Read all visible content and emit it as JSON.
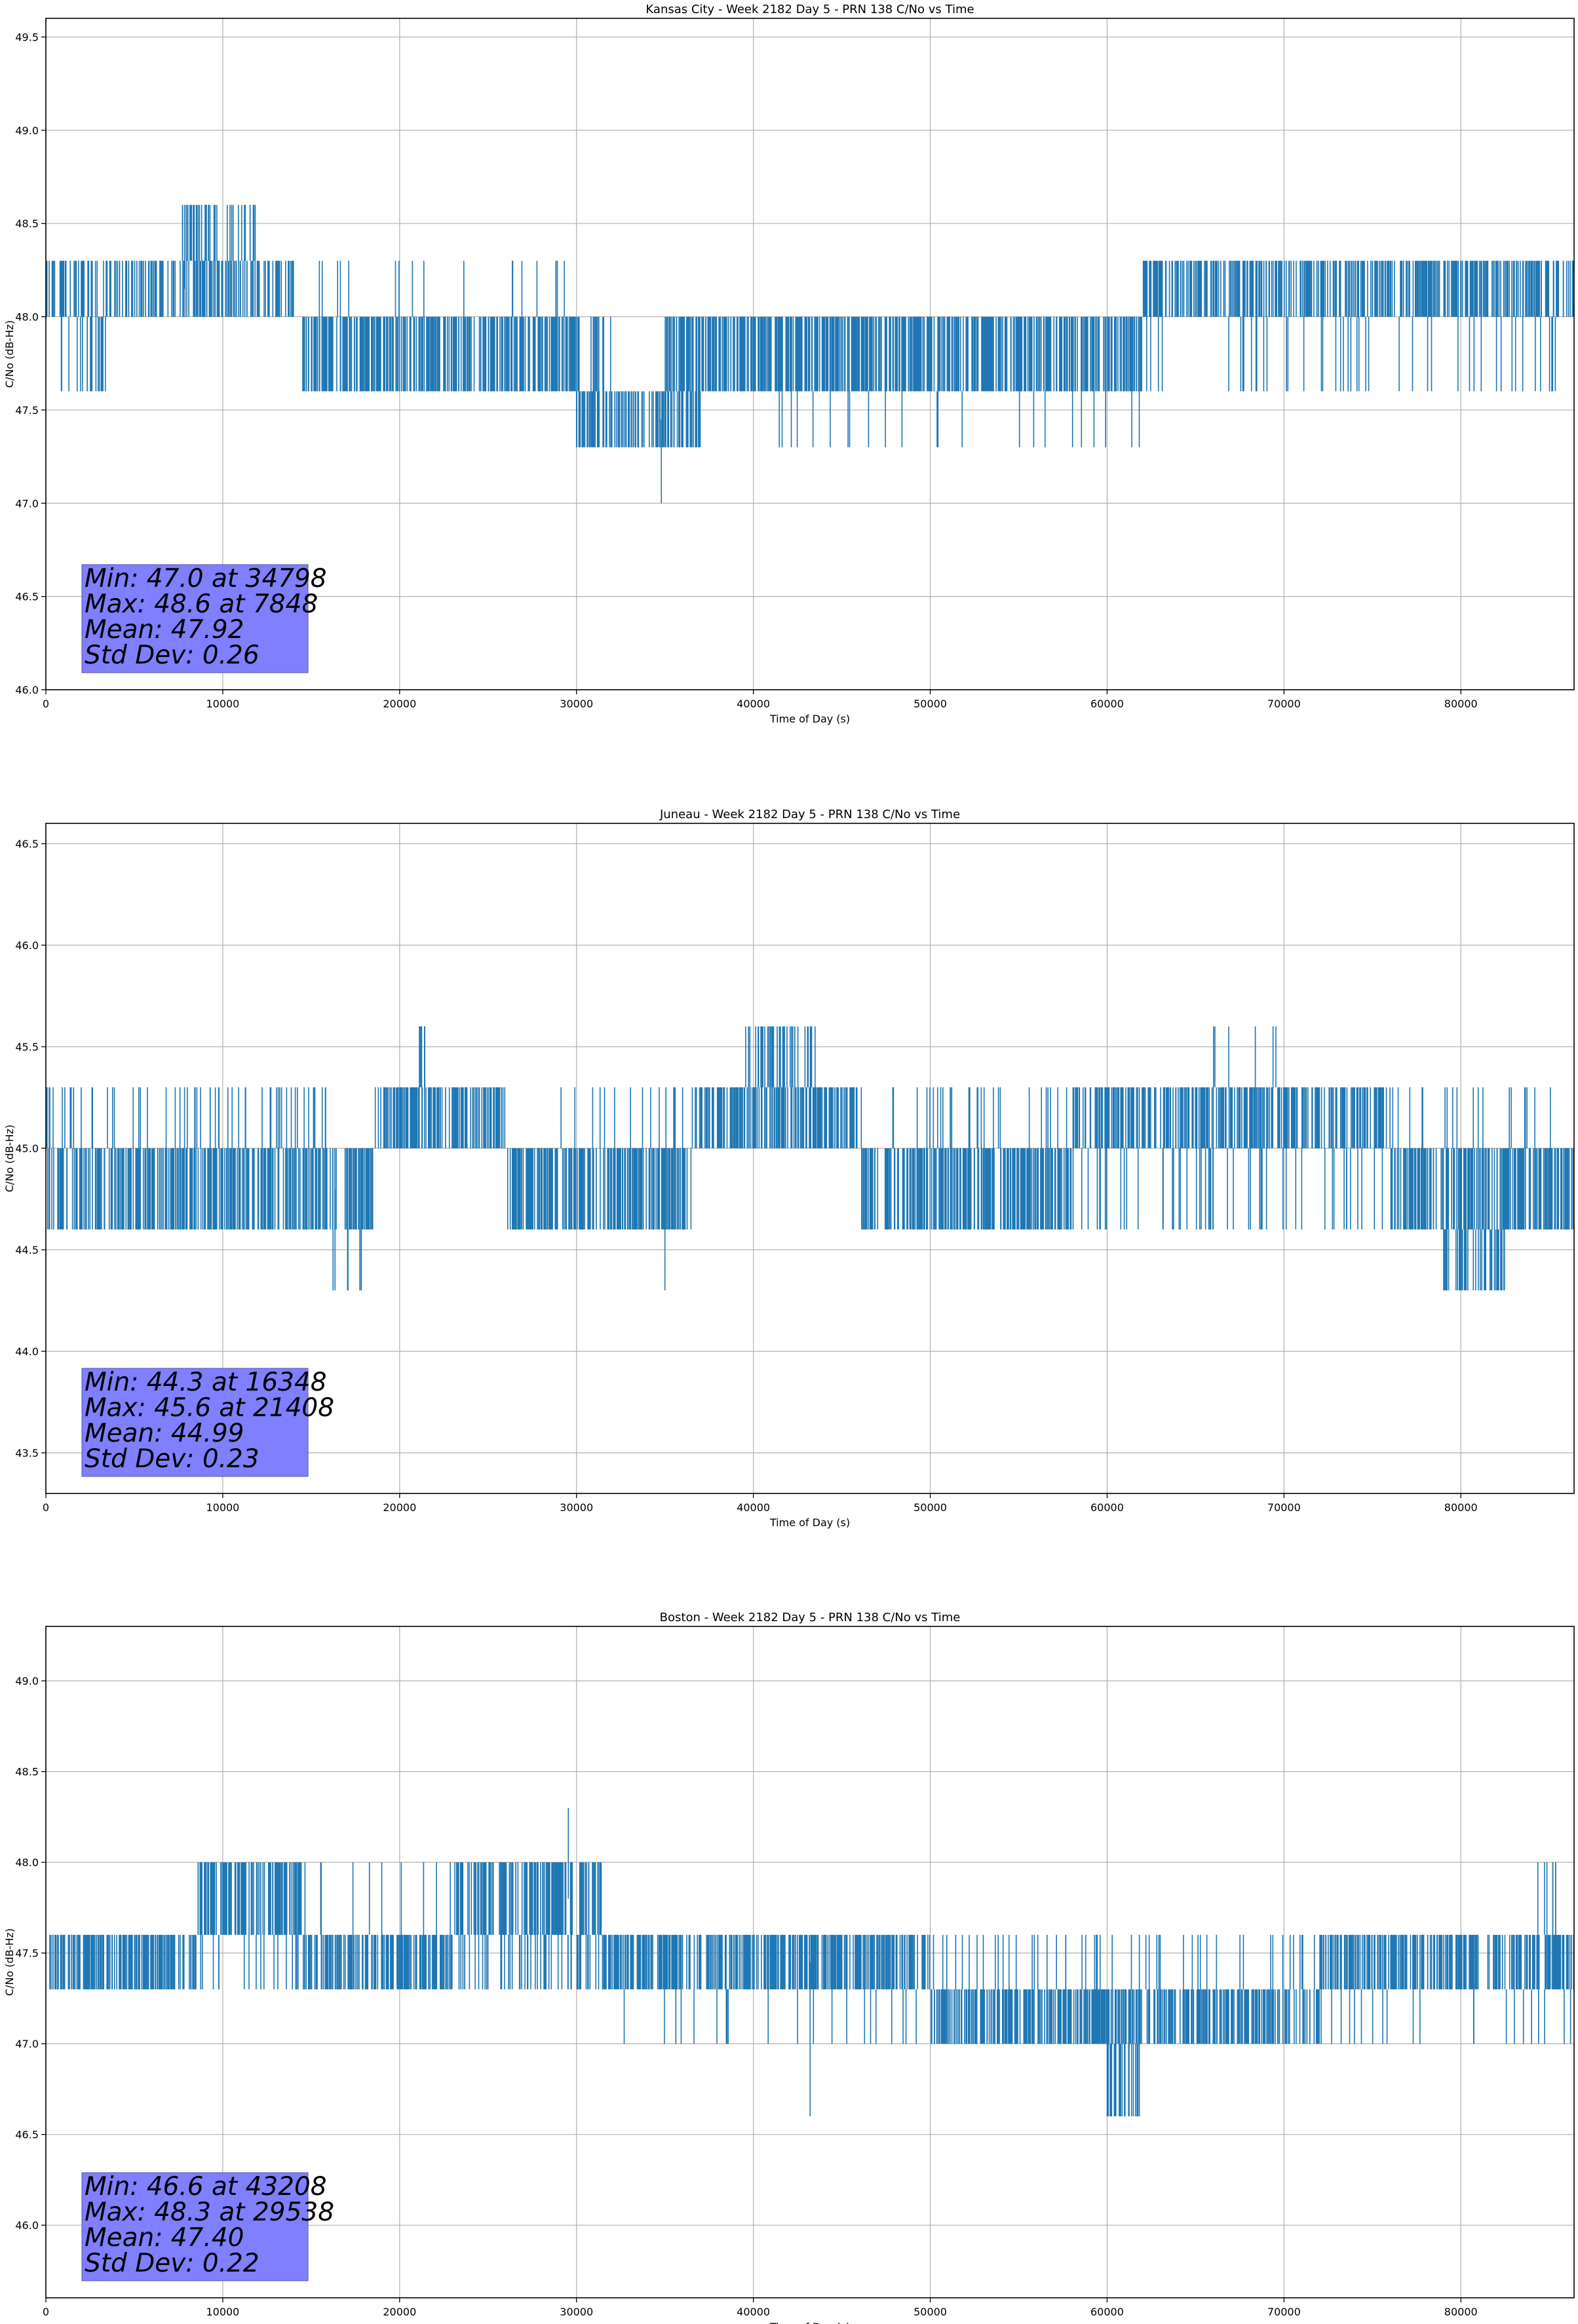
{
  "chart_data": [
    {
      "type": "line",
      "title": "Kansas City - Week 2182 Day 5 - PRN 138 C/No vs Time",
      "xlabel": "Time of Day (s)",
      "ylabel": "C/No (dB-Hz)",
      "xlim": [
        0,
        86400
      ],
      "ylim": [
        46.0,
        49.6
      ],
      "xticks": [
        0,
        10000,
        20000,
        30000,
        40000,
        50000,
        60000,
        70000,
        80000
      ],
      "yticks": [
        46.0,
        46.5,
        47.0,
        47.5,
        48.0,
        48.5,
        49.0,
        49.5
      ],
      "grid": true,
      "series_color": "#1f77b4",
      "stats": {
        "min": "Min: 47.0 at 34798",
        "max": "Max: 48.6 at 7848",
        "mean": "Mean: 47.92",
        "std": "Std Dev: 0.26"
      },
      "segments": [
        {
          "x0": 0,
          "x1": 14000,
          "levels": [
            48.0,
            48.3
          ],
          "w": 0.55
        },
        {
          "x0": 0,
          "x1": 4000,
          "levels": [
            47.6,
            48.0
          ],
          "w": 0.2
        },
        {
          "x0": 7700,
          "x1": 12000,
          "levels": [
            48.3,
            48.6
          ],
          "w": 0.4
        },
        {
          "x0": 14500,
          "x1": 30000,
          "levels": [
            47.6,
            48.0
          ],
          "w": 0.85
        },
        {
          "x0": 14500,
          "x1": 30000,
          "levels": [
            48.0,
            48.3
          ],
          "w": 0.05
        },
        {
          "x0": 30000,
          "x1": 32000,
          "levels": [
            47.6,
            48.0
          ],
          "w": 0.3
        },
        {
          "x0": 30000,
          "x1": 37000,
          "levels": [
            47.3,
            47.6
          ],
          "w": 0.75
        },
        {
          "x0": 35000,
          "x1": 62000,
          "levels": [
            47.6,
            48.0
          ],
          "w": 0.9
        },
        {
          "x0": 35000,
          "x1": 62000,
          "levels": [
            47.3,
            47.6
          ],
          "w": 0.04
        },
        {
          "x0": 62000,
          "x1": 86400,
          "levels": [
            48.0,
            48.3
          ],
          "w": 0.7
        },
        {
          "x0": 62000,
          "x1": 86400,
          "levels": [
            47.6,
            48.0
          ],
          "w": 0.08
        }
      ],
      "spikes": [
        [
          34798,
          47.0
        ],
        [
          7848,
          48.6
        ]
      ]
    },
    {
      "type": "line",
      "title": "Juneau - Week 2182 Day 5 - PRN 138 C/No vs Time",
      "xlabel": "Time of Day (s)",
      "ylabel": "C/No (dB-Hz)",
      "xlim": [
        0,
        86400
      ],
      "ylim": [
        43.3,
        46.6
      ],
      "xticks": [
        0,
        10000,
        20000,
        30000,
        40000,
        50000,
        60000,
        70000,
        80000
      ],
      "yticks": [
        43.5,
        44.0,
        44.5,
        45.0,
        45.5,
        46.0,
        46.5
      ],
      "grid": true,
      "series_color": "#1f77b4",
      "stats": {
        "min": "Min: 44.3 at 16348",
        "max": "Max: 45.6 at 21408",
        "mean": "Mean: 44.99",
        "std": "Std Dev: 0.23"
      },
      "segments": [
        {
          "x0": 0,
          "x1": 18500,
          "levels": [
            44.6,
            45.0
          ],
          "w": 0.8
        },
        {
          "x0": 0,
          "x1": 16000,
          "levels": [
            45.0,
            45.3
          ],
          "w": 0.15
        },
        {
          "x0": 16000,
          "x1": 18500,
          "levels": [
            44.3,
            44.6
          ],
          "w": 0.1
        },
        {
          "x0": 18500,
          "x1": 26000,
          "levels": [
            45.0,
            45.3
          ],
          "w": 0.8
        },
        {
          "x0": 21000,
          "x1": 21600,
          "levels": [
            45.3,
            45.6
          ],
          "w": 0.5
        },
        {
          "x0": 26000,
          "x1": 36500,
          "levels": [
            44.6,
            45.0
          ],
          "w": 0.85
        },
        {
          "x0": 26000,
          "x1": 36500,
          "levels": [
            45.0,
            45.3
          ],
          "w": 0.06
        },
        {
          "x0": 36500,
          "x1": 46000,
          "levels": [
            45.0,
            45.3
          ],
          "w": 0.8
        },
        {
          "x0": 39500,
          "x1": 43500,
          "levels": [
            45.3,
            45.6
          ],
          "w": 0.45
        },
        {
          "x0": 46000,
          "x1": 58000,
          "levels": [
            44.6,
            45.0
          ],
          "w": 0.85
        },
        {
          "x0": 46000,
          "x1": 58000,
          "levels": [
            45.0,
            45.3
          ],
          "w": 0.1
        },
        {
          "x0": 58000,
          "x1": 76000,
          "levels": [
            45.0,
            45.3
          ],
          "w": 0.7
        },
        {
          "x0": 58000,
          "x1": 76000,
          "levels": [
            44.6,
            45.0
          ],
          "w": 0.12
        },
        {
          "x0": 66000,
          "x1": 70000,
          "levels": [
            45.3,
            45.6
          ],
          "w": 0.06
        },
        {
          "x0": 76000,
          "x1": 86400,
          "levels": [
            44.6,
            45.0
          ],
          "w": 0.8
        },
        {
          "x0": 76000,
          "x1": 86400,
          "levels": [
            45.0,
            45.3
          ],
          "w": 0.08
        },
        {
          "x0": 79000,
          "x1": 82500,
          "levels": [
            44.3,
            44.6
          ],
          "w": 0.5
        }
      ],
      "spikes": [
        [
          16348,
          44.3
        ],
        [
          21408,
          45.6
        ],
        [
          35000,
          44.3
        ]
      ]
    },
    {
      "type": "line",
      "title": "Boston - Week 2182 Day 5 - PRN 138 C/No vs Time",
      "xlabel": "Time of Day (s)",
      "ylabel": "C/No (dB-Hz)",
      "xlim": [
        0,
        86400
      ],
      "ylim": [
        45.6,
        49.3
      ],
      "xticks": [
        0,
        10000,
        20000,
        30000,
        40000,
        50000,
        60000,
        70000,
        80000
      ],
      "yticks": [
        46.0,
        46.5,
        47.0,
        47.5,
        48.0,
        48.5,
        49.0
      ],
      "grid": true,
      "series_color": "#1f77b4",
      "stats": {
        "min": "Min: 46.6 at 43208",
        "max": "Max: 48.3 at 29538",
        "mean": "Mean: 47.40",
        "std": "Std Dev: 0.22"
      },
      "segments": [
        {
          "x0": 0,
          "x1": 8500,
          "levels": [
            47.3,
            47.6
          ],
          "w": 0.85
        },
        {
          "x0": 8500,
          "x1": 14500,
          "levels": [
            47.6,
            48.0
          ],
          "w": 0.85
        },
        {
          "x0": 8500,
          "x1": 14500,
          "levels": [
            47.3,
            47.6
          ],
          "w": 0.12
        },
        {
          "x0": 14500,
          "x1": 23000,
          "levels": [
            47.3,
            47.6
          ],
          "w": 0.85
        },
        {
          "x0": 14500,
          "x1": 23000,
          "levels": [
            47.6,
            48.0
          ],
          "w": 0.05
        },
        {
          "x0": 23000,
          "x1": 31500,
          "levels": [
            47.6,
            48.0
          ],
          "w": 0.65
        },
        {
          "x0": 23000,
          "x1": 31500,
          "levels": [
            47.3,
            47.6
          ],
          "w": 0.25
        },
        {
          "x0": 31500,
          "x1": 50000,
          "levels": [
            47.3,
            47.6
          ],
          "w": 0.85
        },
        {
          "x0": 31500,
          "x1": 50000,
          "levels": [
            47.0,
            47.3
          ],
          "w": 0.05
        },
        {
          "x0": 50000,
          "x1": 72000,
          "levels": [
            47.0,
            47.3
          ],
          "w": 0.8
        },
        {
          "x0": 50000,
          "x1": 72000,
          "levels": [
            47.3,
            47.6
          ],
          "w": 0.1
        },
        {
          "x0": 60000,
          "x1": 62000,
          "levels": [
            46.6,
            47.0
          ],
          "w": 0.5
        },
        {
          "x0": 72000,
          "x1": 86400,
          "levels": [
            47.3,
            47.6
          ],
          "w": 0.85
        },
        {
          "x0": 72000,
          "x1": 86400,
          "levels": [
            47.0,
            47.3
          ],
          "w": 0.06
        },
        {
          "x0": 83500,
          "x1": 85500,
          "levels": [
            47.6,
            48.0
          ],
          "w": 0.15
        }
      ],
      "spikes": [
        [
          43208,
          46.6
        ],
        [
          29538,
          48.3
        ]
      ]
    }
  ]
}
